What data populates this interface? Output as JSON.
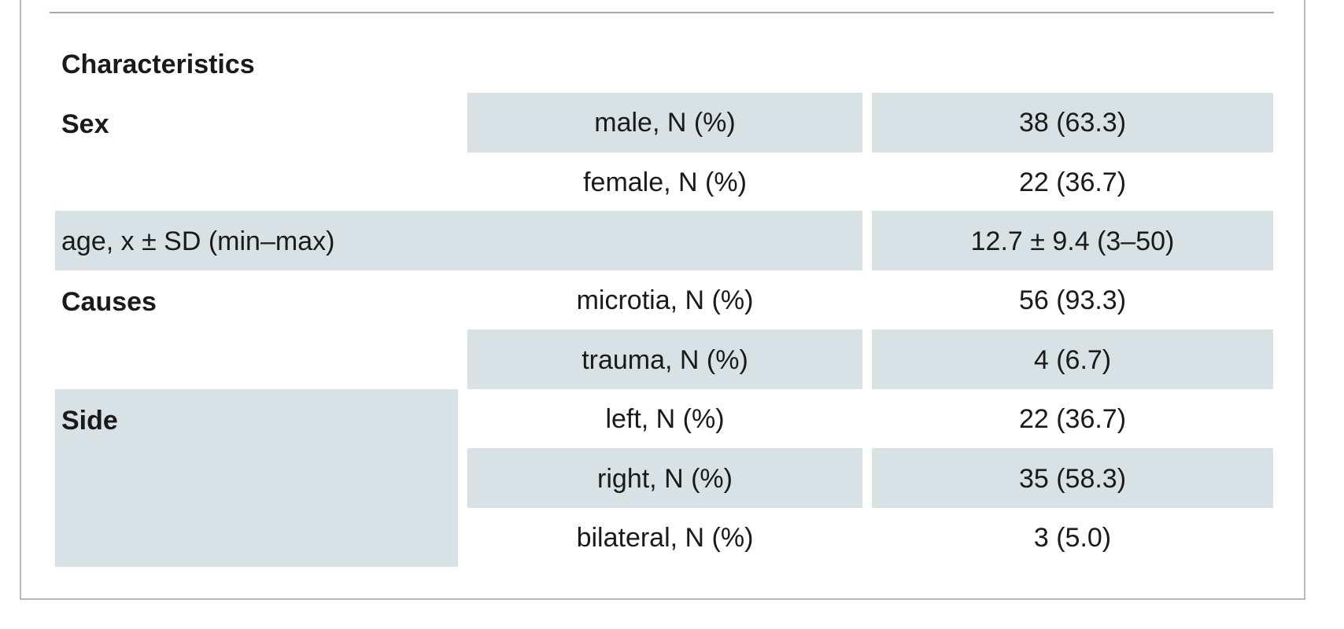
{
  "table": {
    "heading": "Characteristics",
    "rows": [
      {
        "group": "Sex",
        "label": "male, N (%)",
        "value": "38 (63.3)"
      },
      {
        "group": "",
        "label": "female, N (%)",
        "value": "22 (36.7)"
      },
      {
        "group": "",
        "label": "age, x ± SD (min–max)",
        "value": "12.7 ± 9.4 (3–50)"
      },
      {
        "group": "Causes",
        "label": "microtia, N (%)",
        "value": "56 (93.3)"
      },
      {
        "group": "",
        "label": "trauma, N (%)",
        "value": "4 (6.7)"
      },
      {
        "group": "Side",
        "label": "left, N (%)",
        "value": "22 (36.7)"
      },
      {
        "group": "",
        "label": "right, N (%)",
        "value": "35 (58.3)"
      },
      {
        "group": "",
        "label": "bilateral, N (%)",
        "value": "3 (5.0)"
      }
    ]
  },
  "colors": {
    "shade": "#d8e2e5",
    "border": "#b8b8b8",
    "text": "#1a1a1a"
  }
}
